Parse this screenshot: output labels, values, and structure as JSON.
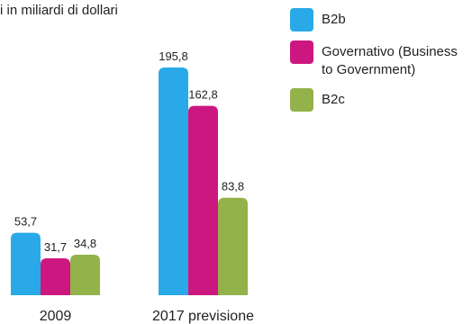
{
  "subtitle": "i in miliardi di dollari",
  "chart_data": {
    "type": "bar",
    "categories": [
      "2009",
      "2017 previsione"
    ],
    "series": [
      {
        "name": "B2b",
        "color": "#29a9e8",
        "values": [
          53.7,
          195.8
        ],
        "labels": [
          "53,7",
          "195,8"
        ]
      },
      {
        "name": "Governativo (Business to Government)",
        "color": "#cc1780",
        "values": [
          31.7,
          162.8
        ],
        "labels": [
          "31,7",
          "162,8"
        ]
      },
      {
        "name": "B2c",
        "color": "#93b24a",
        "values": [
          34.8,
          83.8
        ],
        "labels": [
          "34,8",
          "83,8"
        ]
      }
    ],
    "ylim": [
      0,
      195.8
    ],
    "grid": false,
    "legend": "top-right"
  }
}
